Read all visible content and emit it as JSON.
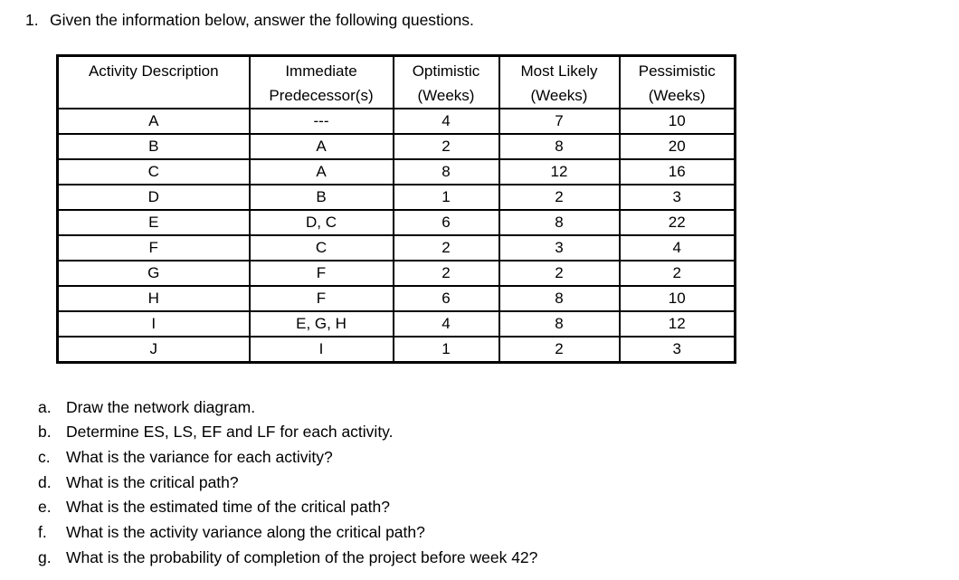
{
  "title": {
    "number": "1.",
    "text": "Given the information below, answer the following questions."
  },
  "table": {
    "headers": [
      {
        "line1": "Activity Description",
        "line2": ""
      },
      {
        "line1": "Immediate",
        "line2": "Predecessor(s)"
      },
      {
        "line1": "Optimistic",
        "line2": "(Weeks)"
      },
      {
        "line1": "Most Likely",
        "line2": "(Weeks)"
      },
      {
        "line1": "Pessimistic",
        "line2": "(Weeks)"
      }
    ],
    "rows": [
      [
        "A",
        "---",
        "4",
        "7",
        "10"
      ],
      [
        "B",
        "A",
        "2",
        "8",
        "20"
      ],
      [
        "C",
        "A",
        "8",
        "12",
        "16"
      ],
      [
        "D",
        "B",
        "1",
        "2",
        "3"
      ],
      [
        "E",
        "D, C",
        "6",
        "8",
        "22"
      ],
      [
        "F",
        "C",
        "2",
        "3",
        "4"
      ],
      [
        "G",
        "F",
        "2",
        "2",
        "2"
      ],
      [
        "H",
        "F",
        "6",
        "8",
        "10"
      ],
      [
        "I",
        "E, G, H",
        "4",
        "8",
        "12"
      ],
      [
        "J",
        "I",
        "1",
        "2",
        "3"
      ]
    ]
  },
  "questions": [
    {
      "letter": "a.",
      "text": "Draw the network diagram."
    },
    {
      "letter": "b.",
      "text": "Determine ES, LS, EF and LF for each activity."
    },
    {
      "letter": "c.",
      "text": "What is the variance for each activity?"
    },
    {
      "letter": "d.",
      "text": "What is the critical path?"
    },
    {
      "letter": "e.",
      "text": "What is the estimated time of the critical path?"
    },
    {
      "letter": "f.",
      "text": "What is the activity variance along the critical path?"
    },
    {
      "letter": "g.",
      "text": "What is the probability of completion of the project before week 42?"
    }
  ]
}
